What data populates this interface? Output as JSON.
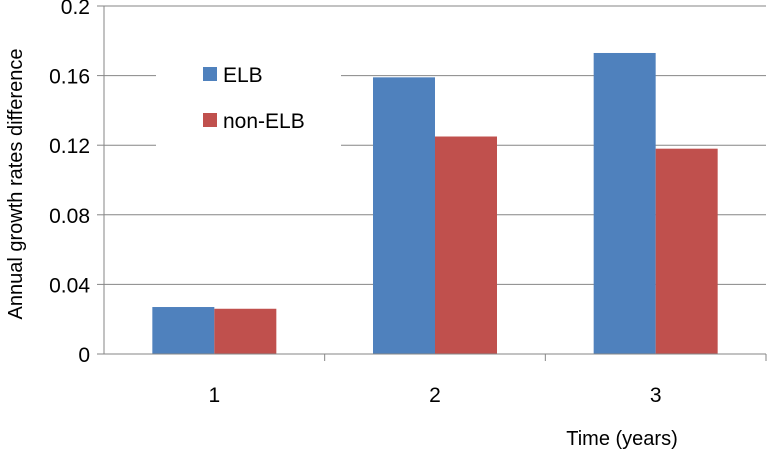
{
  "chart_data": {
    "type": "bar",
    "title": "",
    "xlabel": "Time (years)",
    "ylabel": "Annual growth rates difference",
    "categories": [
      "1",
      "2",
      "3"
    ],
    "series": [
      {
        "name": "ELB",
        "color": "#4f81bd",
        "values": [
          0.027,
          0.159,
          0.173
        ]
      },
      {
        "name": "non-ELB",
        "color": "#c0504d",
        "values": [
          0.026,
          0.125,
          0.118
        ]
      }
    ],
    "ylim": [
      0,
      0.2
    ],
    "yticks": [
      "0",
      "0.04",
      "0.08",
      "0.12",
      "0.16",
      "0.2"
    ],
    "grid": true,
    "legend_position": "top-left"
  }
}
